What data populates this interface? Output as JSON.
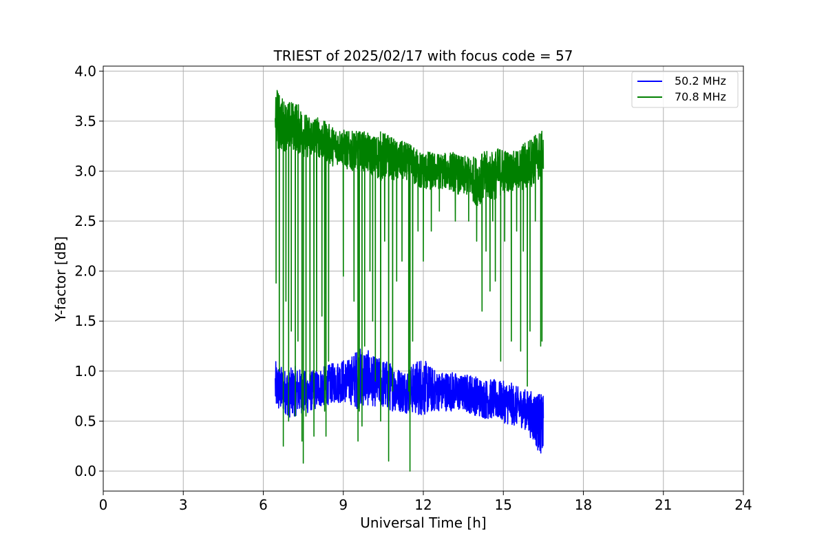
{
  "chart_data": {
    "type": "line",
    "title": "TRIEST of 2025/02/17 with focus code = 57",
    "xlabel": "Universal Time [h]",
    "ylabel": "Y-factor [dB]",
    "xlim": [
      0,
      24
    ],
    "ylim": [
      -0.2,
      4.05
    ],
    "xticks": [
      0,
      3,
      6,
      9,
      12,
      15,
      18,
      21,
      24
    ],
    "xtick_labels": [
      "0",
      "3",
      "6",
      "9",
      "12",
      "15",
      "18",
      "21",
      "24"
    ],
    "yticks": [
      0.0,
      0.5,
      1.0,
      1.5,
      2.0,
      2.5,
      3.0,
      3.5,
      4.0
    ],
    "ytick_labels": [
      "0.0",
      "0.5",
      "1.0",
      "1.5",
      "2.0",
      "2.5",
      "3.0",
      "3.5",
      "4.0"
    ],
    "grid": true,
    "legend_position": "top-right",
    "series": [
      {
        "name": "50.2 MHz",
        "color": "#0000ff",
        "x": [
          6.45,
          6.6,
          6.8,
          7.0,
          7.2,
          7.4,
          7.6,
          7.8,
          8.0,
          8.3,
          8.6,
          8.9,
          9.2,
          9.5,
          9.8,
          10.1,
          10.4,
          10.7,
          11.0,
          11.3,
          11.6,
          11.9,
          12.2,
          12.5,
          12.8,
          13.1,
          13.4,
          13.7,
          14.0,
          14.3,
          14.6,
          14.9,
          15.2,
          15.5,
          15.8,
          16.1,
          16.3,
          16.5
        ],
        "mid": [
          0.85,
          0.82,
          0.8,
          0.78,
          0.8,
          0.8,
          0.78,
          0.8,
          0.82,
          0.85,
          0.88,
          0.9,
          0.9,
          0.92,
          0.95,
          0.9,
          0.88,
          0.85,
          0.82,
          0.8,
          0.82,
          0.85,
          0.82,
          0.8,
          0.8,
          0.8,
          0.78,
          0.78,
          0.75,
          0.72,
          0.72,
          0.7,
          0.68,
          0.65,
          0.62,
          0.55,
          0.5,
          0.45
        ],
        "spread": [
          0.25,
          0.25,
          0.22,
          0.25,
          0.25,
          0.22,
          0.22,
          0.2,
          0.2,
          0.2,
          0.2,
          0.22,
          0.22,
          0.3,
          0.3,
          0.25,
          0.25,
          0.25,
          0.22,
          0.22,
          0.25,
          0.3,
          0.25,
          0.2,
          0.2,
          0.2,
          0.18,
          0.2,
          0.2,
          0.2,
          0.2,
          0.2,
          0.22,
          0.2,
          0.2,
          0.25,
          0.3,
          0.3
        ]
      },
      {
        "name": "70.8 MHz",
        "color": "#008000",
        "x": [
          6.45,
          6.6,
          6.8,
          7.0,
          7.2,
          7.4,
          7.6,
          7.8,
          8.0,
          8.3,
          8.6,
          8.9,
          9.2,
          9.5,
          9.8,
          10.1,
          10.4,
          10.7,
          11.0,
          11.3,
          11.6,
          11.9,
          12.2,
          12.5,
          12.8,
          13.1,
          13.4,
          13.7,
          14.0,
          14.3,
          14.6,
          14.9,
          15.2,
          15.5,
          15.8,
          16.1,
          16.3,
          16.5
        ],
        "mid": [
          3.55,
          3.5,
          3.45,
          3.45,
          3.45,
          3.4,
          3.35,
          3.35,
          3.35,
          3.3,
          3.25,
          3.25,
          3.2,
          3.2,
          3.2,
          3.15,
          3.15,
          3.15,
          3.1,
          3.1,
          3.05,
          3.0,
          3.0,
          3.0,
          3.0,
          3.0,
          2.95,
          2.95,
          2.9,
          2.95,
          2.95,
          3.0,
          3.0,
          3.0,
          3.05,
          3.1,
          3.15,
          3.15
        ],
        "spread": [
          0.3,
          0.3,
          0.25,
          0.25,
          0.25,
          0.25,
          0.22,
          0.2,
          0.2,
          0.2,
          0.2,
          0.18,
          0.2,
          0.2,
          0.2,
          0.2,
          0.25,
          0.22,
          0.2,
          0.2,
          0.2,
          0.2,
          0.2,
          0.18,
          0.18,
          0.2,
          0.2,
          0.2,
          0.25,
          0.25,
          0.25,
          0.25,
          0.2,
          0.2,
          0.25,
          0.25,
          0.25,
          0.25
        ],
        "dips": [
          [
            6.48,
            1.88
          ],
          [
            6.6,
            1.0
          ],
          [
            6.75,
            0.25
          ],
          [
            6.85,
            1.7
          ],
          [
            6.95,
            0.5
          ],
          [
            7.05,
            1.4
          ],
          [
            7.2,
            0.55
          ],
          [
            7.3,
            1.3
          ],
          [
            7.45,
            0.3
          ],
          [
            7.5,
            0.08
          ],
          [
            7.6,
            0.55
          ],
          [
            7.75,
            0.9
          ],
          [
            7.9,
            0.35
          ],
          [
            8.0,
            1.0
          ],
          [
            8.2,
            1.55
          ],
          [
            8.3,
            0.6
          ],
          [
            8.35,
            0.35
          ],
          [
            8.45,
            1.1
          ],
          [
            9.0,
            1.95
          ],
          [
            9.4,
            1.7
          ],
          [
            9.55,
            0.3
          ],
          [
            9.6,
            0.6
          ],
          [
            9.7,
            0.45
          ],
          [
            9.8,
            1.25
          ],
          [
            10.0,
            2.0
          ],
          [
            10.1,
            1.5
          ],
          [
            10.2,
            0.9
          ],
          [
            10.4,
            0.5
          ],
          [
            10.55,
            2.3
          ],
          [
            10.7,
            0.1
          ],
          [
            10.85,
            0.8
          ],
          [
            11.0,
            1.9
          ],
          [
            11.2,
            2.1
          ],
          [
            11.45,
            0.8
          ],
          [
            11.5,
            0.0
          ],
          [
            11.6,
            1.3
          ],
          [
            11.8,
            2.4
          ],
          [
            12.0,
            2.1
          ],
          [
            12.3,
            2.4
          ],
          [
            12.6,
            2.6
          ],
          [
            13.2,
            2.5
          ],
          [
            13.7,
            2.5
          ],
          [
            14.0,
            2.3
          ],
          [
            14.2,
            1.6
          ],
          [
            14.35,
            2.2
          ],
          [
            14.5,
            1.8
          ],
          [
            14.6,
            2.5
          ],
          [
            14.7,
            1.9
          ],
          [
            14.9,
            1.1
          ],
          [
            15.05,
            2.3
          ],
          [
            15.3,
            1.3
          ],
          [
            15.5,
            2.4
          ],
          [
            15.65,
            1.2
          ],
          [
            15.75,
            2.2
          ],
          [
            15.9,
            0.85
          ],
          [
            16.0,
            1.4
          ],
          [
            16.2,
            2.5
          ],
          [
            16.4,
            1.25
          ],
          [
            16.45,
            1.3
          ]
        ]
      }
    ]
  }
}
